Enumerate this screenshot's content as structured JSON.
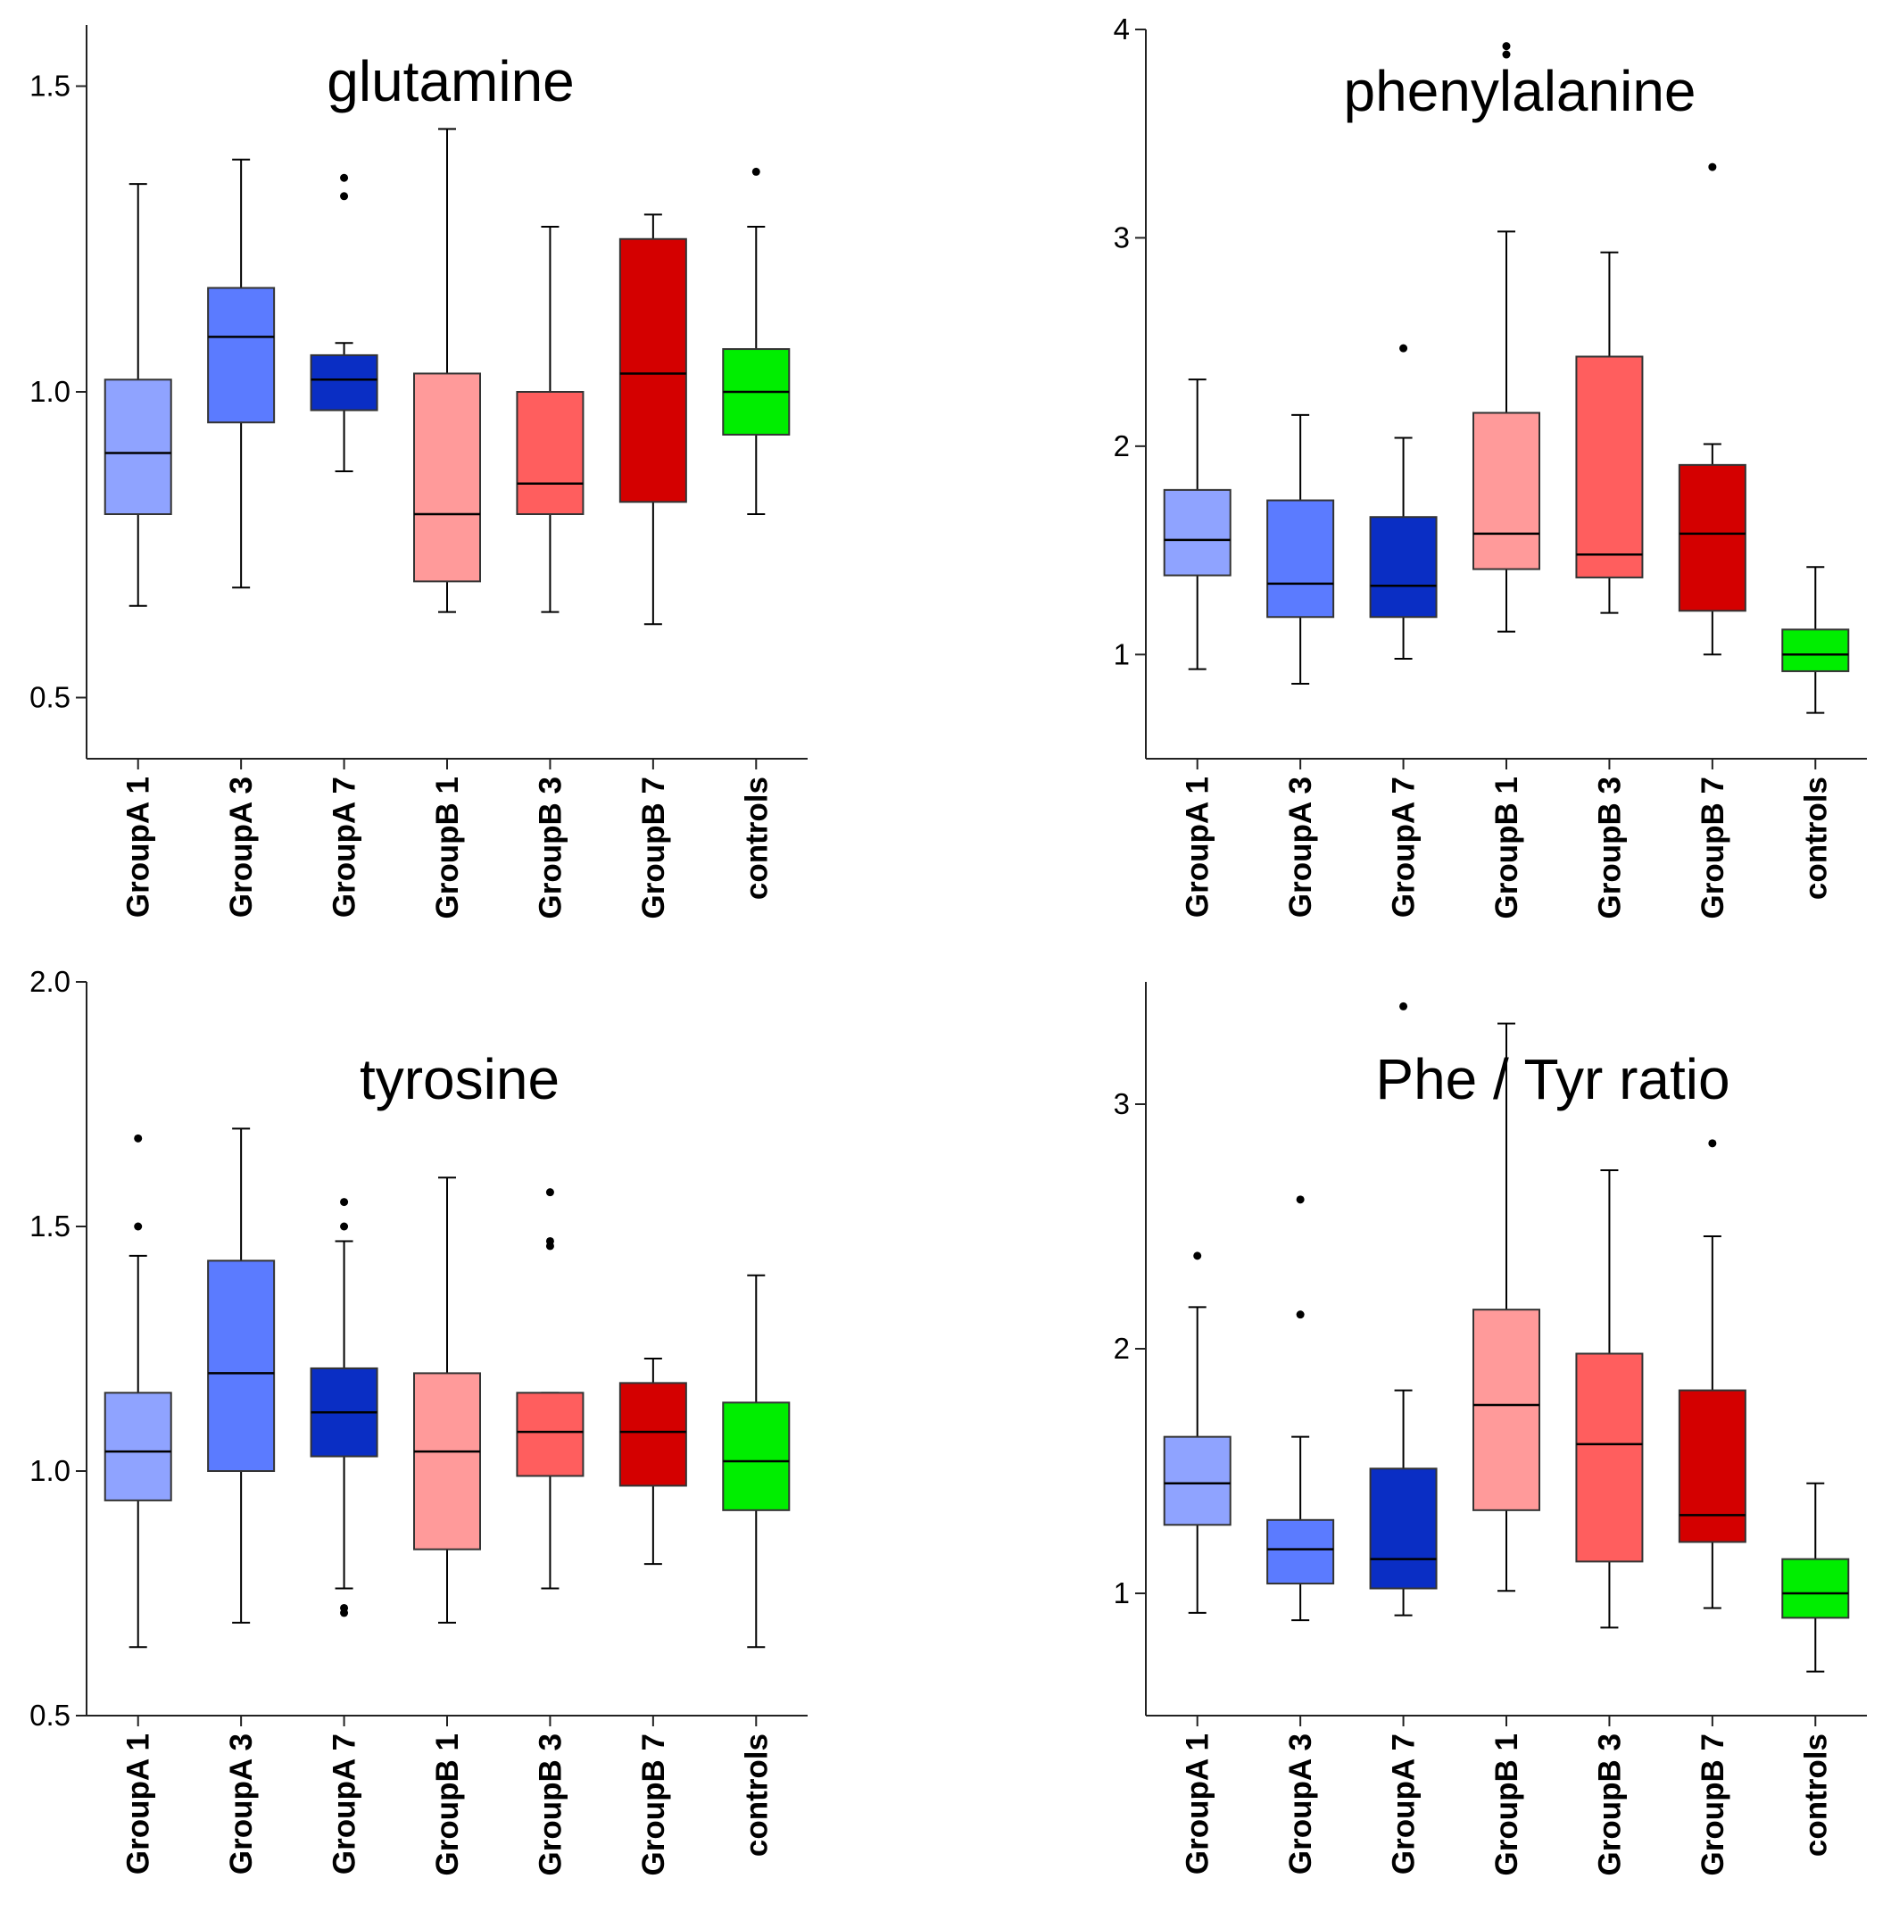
{
  "chart_data": [
    {
      "type": "box",
      "title": "glutamine",
      "xlabel": "",
      "ylabel": "",
      "categories": [
        "GroupA 1",
        "GroupA 3",
        "GroupA 7",
        "GroupB 1",
        "GroupB 3",
        "GroupB 7",
        "controls"
      ],
      "ylim": [
        0.4,
        1.6
      ],
      "yticks": [
        0.5,
        1.0,
        1.5
      ],
      "ytick_labels": [
        "0.5",
        "1.0",
        "1.5"
      ],
      "boxes": [
        {
          "whisker_low": 0.65,
          "q1": 0.8,
          "median": 0.9,
          "q3": 1.02,
          "whisker_high": 1.34,
          "outliers": []
        },
        {
          "whisker_low": 0.68,
          "q1": 0.95,
          "median": 1.09,
          "q3": 1.17,
          "whisker_high": 1.38,
          "outliers": []
        },
        {
          "whisker_low": 0.87,
          "q1": 0.97,
          "median": 1.02,
          "q3": 1.06,
          "whisker_high": 1.08,
          "outliers": [
            1.32,
            1.35
          ]
        },
        {
          "whisker_low": 0.64,
          "q1": 0.69,
          "median": 0.8,
          "q3": 1.03,
          "whisker_high": 1.43,
          "outliers": []
        },
        {
          "whisker_low": 0.64,
          "q1": 0.8,
          "median": 0.85,
          "q3": 1.0,
          "whisker_high": 1.27,
          "outliers": []
        },
        {
          "whisker_low": 0.62,
          "q1": 0.82,
          "median": 1.03,
          "q3": 1.25,
          "whisker_high": 1.29,
          "outliers": []
        },
        {
          "whisker_low": 0.8,
          "q1": 0.93,
          "median": 1.0,
          "q3": 1.07,
          "whisker_high": 1.27,
          "outliers": [
            1.36
          ]
        }
      ]
    },
    {
      "type": "box",
      "title": "phenylalanine",
      "xlabel": "",
      "ylabel": "",
      "categories": [
        "GroupA 1",
        "GroupA 3",
        "GroupA 7",
        "GroupB 1",
        "GroupB 3",
        "GroupB 7",
        "controls"
      ],
      "ylim": [
        0.5,
        4.0
      ],
      "yticks": [
        1,
        2,
        3,
        4
      ],
      "ytick_labels": [
        "1",
        "2",
        "3",
        "4"
      ],
      "boxes": [
        {
          "whisker_low": 0.93,
          "q1": 1.38,
          "median": 1.55,
          "q3": 1.79,
          "whisker_high": 2.32,
          "outliers": []
        },
        {
          "whisker_low": 0.86,
          "q1": 1.18,
          "median": 1.34,
          "q3": 1.74,
          "whisker_high": 2.15,
          "outliers": []
        },
        {
          "whisker_low": 0.98,
          "q1": 1.18,
          "median": 1.33,
          "q3": 1.66,
          "whisker_high": 2.04,
          "outliers": [
            2.47
          ]
        },
        {
          "whisker_low": 1.11,
          "q1": 1.41,
          "median": 1.58,
          "q3": 2.16,
          "whisker_high": 3.03,
          "outliers": [
            3.88,
            3.92
          ]
        },
        {
          "whisker_low": 1.2,
          "q1": 1.37,
          "median": 1.48,
          "q3": 2.43,
          "whisker_high": 2.93,
          "outliers": []
        },
        {
          "whisker_low": 1.0,
          "q1": 1.21,
          "median": 1.58,
          "q3": 1.91,
          "whisker_high": 2.01,
          "outliers": [
            3.34
          ]
        },
        {
          "whisker_low": 0.72,
          "q1": 0.92,
          "median": 1.0,
          "q3": 1.12,
          "whisker_high": 1.42,
          "outliers": []
        }
      ]
    },
    {
      "type": "box",
      "title": "tyrosine",
      "xlabel": "",
      "ylabel": "",
      "categories": [
        "GroupA 1",
        "GroupA 3",
        "GroupA 7",
        "GroupB 1",
        "GroupB 3",
        "GroupB 7",
        "controls"
      ],
      "ylim": [
        0.5,
        2.0
      ],
      "yticks": [
        0.5,
        1.0,
        1.5,
        2.0
      ],
      "ytick_labels": [
        "0.5",
        "1.0",
        "1.5",
        "2.0"
      ],
      "boxes": [
        {
          "whisker_low": 0.64,
          "q1": 0.94,
          "median": 1.04,
          "q3": 1.16,
          "whisker_high": 1.44,
          "outliers": [
            1.5,
            1.68
          ]
        },
        {
          "whisker_low": 0.69,
          "q1": 1.0,
          "median": 1.2,
          "q3": 1.43,
          "whisker_high": 1.7,
          "outliers": []
        },
        {
          "whisker_low": 0.76,
          "q1": 1.03,
          "median": 1.12,
          "q3": 1.21,
          "whisker_high": 1.47,
          "outliers": [
            0.71,
            0.72,
            1.5,
            1.55
          ]
        },
        {
          "whisker_low": 0.69,
          "q1": 0.84,
          "median": 1.04,
          "q3": 1.2,
          "whisker_high": 1.6,
          "outliers": []
        },
        {
          "whisker_low": 0.76,
          "q1": 0.99,
          "median": 1.08,
          "q3": 1.16,
          "whisker_high": 1.16,
          "outliers": [
            1.46,
            1.47,
            1.57
          ]
        },
        {
          "whisker_low": 0.81,
          "q1": 0.97,
          "median": 1.08,
          "q3": 1.18,
          "whisker_high": 1.23,
          "outliers": []
        },
        {
          "whisker_low": 0.64,
          "q1": 0.92,
          "median": 1.02,
          "q3": 1.14,
          "whisker_high": 1.4,
          "outliers": []
        }
      ]
    },
    {
      "type": "box",
      "title": "Phe / Tyr ratio",
      "xlabel": "",
      "ylabel": "",
      "categories": [
        "GroupA 1",
        "GroupA 3",
        "GroupA 7",
        "GroupB 1",
        "GroupB 3",
        "GroupB 7",
        "controls"
      ],
      "ylim": [
        0.5,
        3.5
      ],
      "yticks": [
        1,
        2,
        3
      ],
      "ytick_labels": [
        "1",
        "2",
        "3"
      ],
      "boxes": [
        {
          "whisker_low": 0.92,
          "q1": 1.28,
          "median": 1.45,
          "q3": 1.64,
          "whisker_high": 2.17,
          "outliers": [
            2.38
          ]
        },
        {
          "whisker_low": 0.89,
          "q1": 1.04,
          "median": 1.18,
          "q3": 1.3,
          "whisker_high": 1.64,
          "outliers": [
            2.14,
            2.61
          ]
        },
        {
          "whisker_low": 0.91,
          "q1": 1.02,
          "median": 1.14,
          "q3": 1.51,
          "whisker_high": 1.83,
          "outliers": [
            3.4
          ]
        },
        {
          "whisker_low": 1.01,
          "q1": 1.34,
          "median": 1.77,
          "q3": 2.16,
          "whisker_high": 3.33,
          "outliers": []
        },
        {
          "whisker_low": 0.86,
          "q1": 1.13,
          "median": 1.61,
          "q3": 1.98,
          "whisker_high": 2.73,
          "outliers": []
        },
        {
          "whisker_low": 0.94,
          "q1": 1.21,
          "median": 1.32,
          "q3": 1.83,
          "whisker_high": 2.46,
          "outliers": [
            2.84
          ]
        },
        {
          "whisker_low": 0.68,
          "q1": 0.9,
          "median": 1.0,
          "q3": 1.14,
          "whisker_high": 1.45,
          "outliers": []
        }
      ]
    }
  ],
  "colors": {
    "box_fills": [
      "#8fa3ff",
      "#5b7bff",
      "#0a2ec4",
      "#ff9a9a",
      "#ff5e5e",
      "#d40000",
      "#00ee00"
    ],
    "axis": "#222222",
    "ink": "#000000"
  }
}
